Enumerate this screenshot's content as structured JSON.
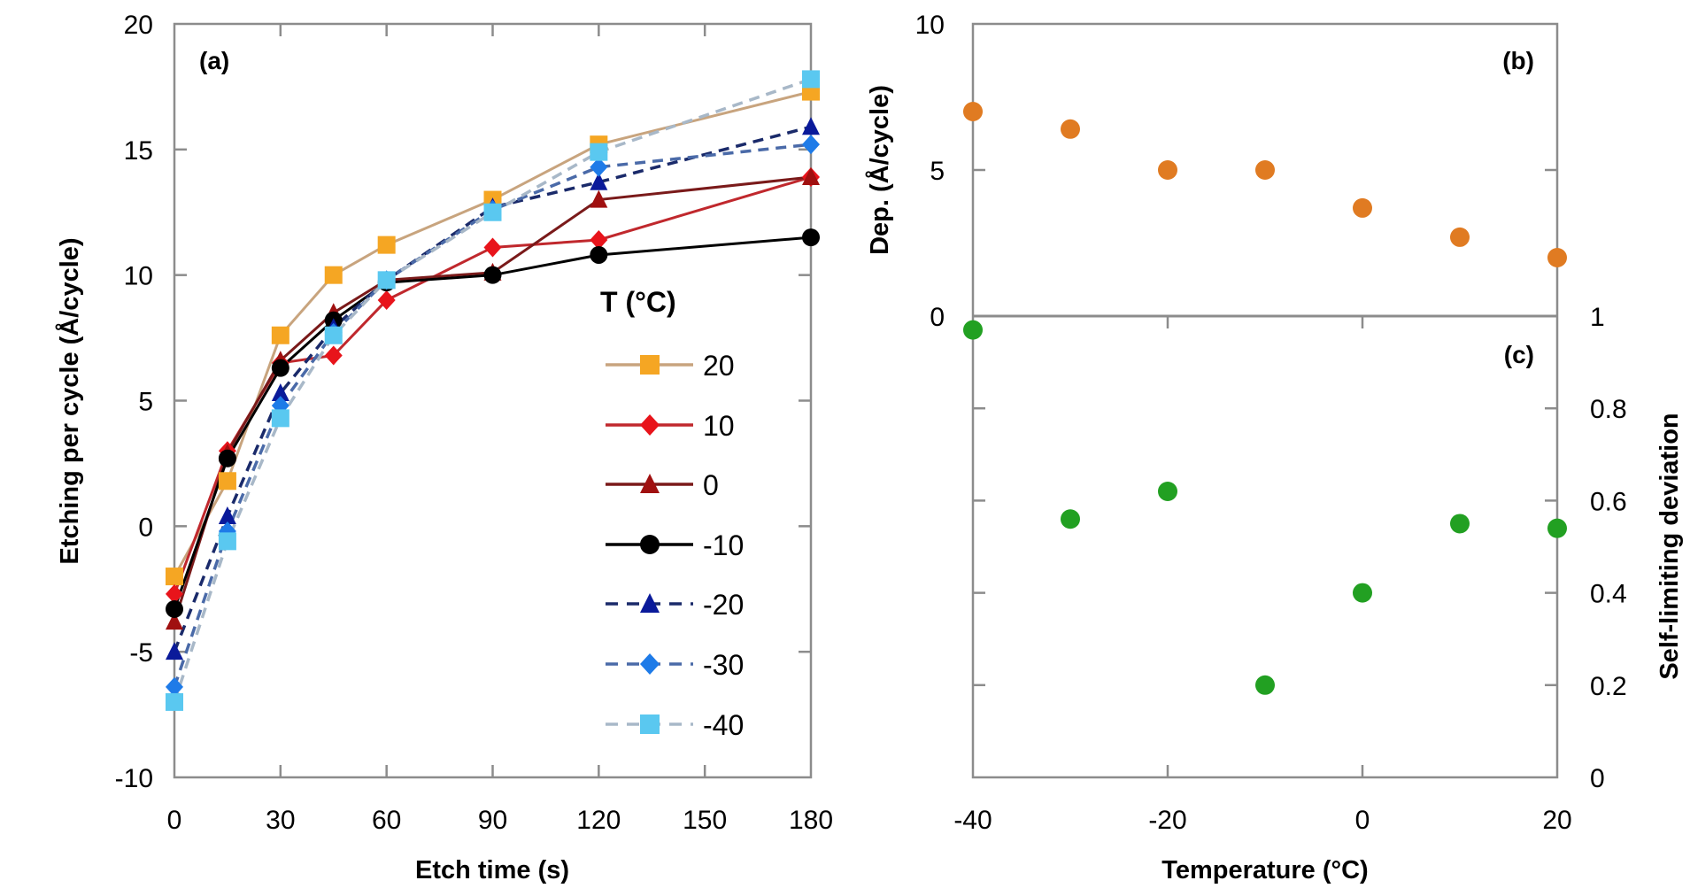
{
  "chart_data": [
    {
      "type": "line",
      "panel_label": "(a)",
      "xlabel": "Etch time (s)",
      "ylabel": "Etching per cycle (Å/cycle)",
      "xlim": [
        0,
        180
      ],
      "ylim": [
        -10,
        20
      ],
      "xticks": [
        "0",
        "30",
        "60",
        "90",
        "120",
        "150",
        "180"
      ],
      "yticks": [
        "-10",
        "-5",
        "0",
        "5",
        "10",
        "15",
        "20"
      ],
      "grid": false,
      "legend_title": "T (°C)",
      "legend_placement": "right",
      "x": [
        0,
        15,
        30,
        45,
        60,
        90,
        120,
        180
      ],
      "series": [
        {
          "name": "20",
          "values": [
            -2.0,
            1.8,
            7.6,
            10.0,
            11.2,
            13.0,
            15.2,
            17.3
          ],
          "marker": "square",
          "marker_color": "#f5a623",
          "line_color": "#c8a47e",
          "dash": false
        },
        {
          "name": "10",
          "values": [
            -2.7,
            3.0,
            6.5,
            6.8,
            9.0,
            11.1,
            11.4,
            13.9
          ],
          "marker": "diamond",
          "marker_color": "#e8141b",
          "line_color": "#c0282d",
          "dash": false
        },
        {
          "name": "0",
          "values": [
            -3.8,
            2.9,
            6.6,
            8.5,
            9.8,
            10.1,
            13.0,
            13.9
          ],
          "marker": "triangle",
          "marker_color": "#a01010",
          "line_color": "#7a1a1a",
          "dash": false
        },
        {
          "name": "-10",
          "values": [
            -3.3,
            2.7,
            6.3,
            8.2,
            9.7,
            10.0,
            10.8,
            11.5
          ],
          "marker": "circle",
          "marker_color": "#000000",
          "line_color": "#000000",
          "dash": false
        },
        {
          "name": "-20",
          "values": [
            -5.0,
            0.4,
            5.3,
            7.9,
            9.8,
            12.7,
            13.7,
            15.9
          ],
          "marker": "triangle",
          "marker_color": "#0a1a9a",
          "line_color": "#1a2a6a",
          "dash": true
        },
        {
          "name": "-30",
          "values": [
            -6.4,
            -0.2,
            4.8,
            7.7,
            9.8,
            12.6,
            14.3,
            15.2
          ],
          "marker": "diamond",
          "marker_color": "#1e7be8",
          "line_color": "#4a6aa8",
          "dash": true
        },
        {
          "name": "-40",
          "values": [
            -7.0,
            -0.6,
            4.3,
            7.6,
            9.8,
            12.5,
            14.9,
            17.8
          ],
          "marker": "square",
          "marker_color": "#5ac8f0",
          "line_color": "#a8b8c8",
          "dash": true
        }
      ]
    },
    {
      "type": "scatter",
      "panel_label": "(b)",
      "xlabel": "Temperature (°C)",
      "ylabel": "Dep. (Å/cycle)",
      "xlim": [
        -40,
        20
      ],
      "ylim": [
        0,
        10
      ],
      "yticks": [
        "0",
        "5",
        "10"
      ],
      "grid": false,
      "x": [
        -40,
        -30,
        -20,
        -10,
        0,
        10,
        20
      ],
      "values": [
        7.0,
        6.4,
        5.0,
        5.0,
        3.7,
        2.7,
        2.0
      ],
      "color": "#e07b22"
    },
    {
      "type": "scatter",
      "panel_label": "(c)",
      "xlabel": "Temperature (°C)",
      "ylabel": "Self-limiting deviation",
      "xlim": [
        -40,
        20
      ],
      "ylim": [
        0,
        1
      ],
      "xticks": [
        "-40",
        "-20",
        "0",
        "20"
      ],
      "yticks": [
        "0",
        "0.2",
        "0.4",
        "0.6",
        "0.8",
        "1"
      ],
      "y_axis_side": "right",
      "grid": false,
      "x": [
        -40,
        -30,
        -20,
        -10,
        0,
        10,
        20
      ],
      "values": [
        0.97,
        0.56,
        0.62,
        0.2,
        0.4,
        0.55,
        0.54
      ],
      "color": "#22a022"
    }
  ]
}
